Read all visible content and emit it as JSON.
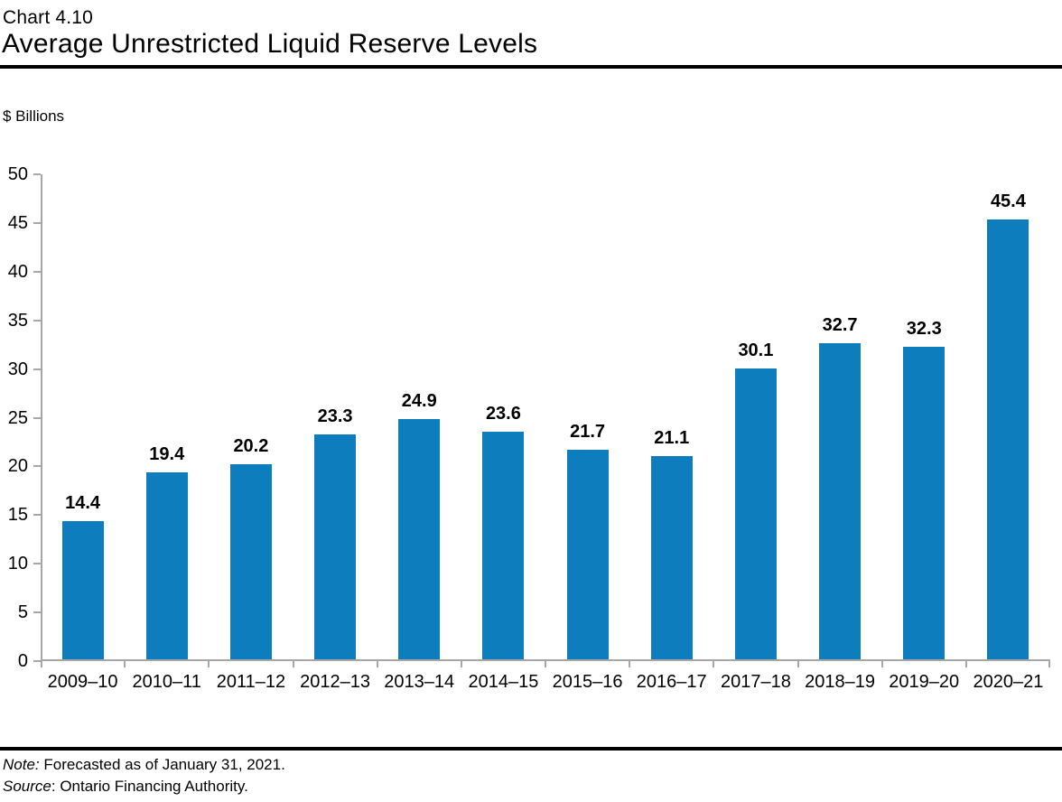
{
  "header": {
    "chart_number": "Chart 4.10",
    "title": "Average Unrestricted Liquid Reserve Levels"
  },
  "chart_data": {
    "type": "bar",
    "title": "Average Unrestricted Liquid Reserve Levels",
    "ylabel": "$ Billions",
    "xlabel": "",
    "categories": [
      "2009–10",
      "2010–11",
      "2011–12",
      "2012–13",
      "2013–14",
      "2014–15",
      "2015–16",
      "2016–17",
      "2017–18",
      "2018–19",
      "2019–20",
      "2020–21"
    ],
    "values": [
      14.4,
      19.4,
      20.2,
      23.3,
      24.9,
      23.6,
      21.7,
      21.1,
      30.1,
      32.7,
      32.3,
      45.4
    ],
    "ylim": [
      0,
      50
    ],
    "ytick_step": 5,
    "grid": false,
    "legend": "none",
    "value_labels_shown": true,
    "bar_color": "#0d7dbe",
    "axis_color": "#a6a6a6",
    "text_color": "#000000"
  },
  "footer": {
    "note_label": "Note:",
    "note_text": " Forecasted as of January 31, 2021.",
    "source_label": "Source",
    "source_text": ": Ontario Financing Authority."
  }
}
